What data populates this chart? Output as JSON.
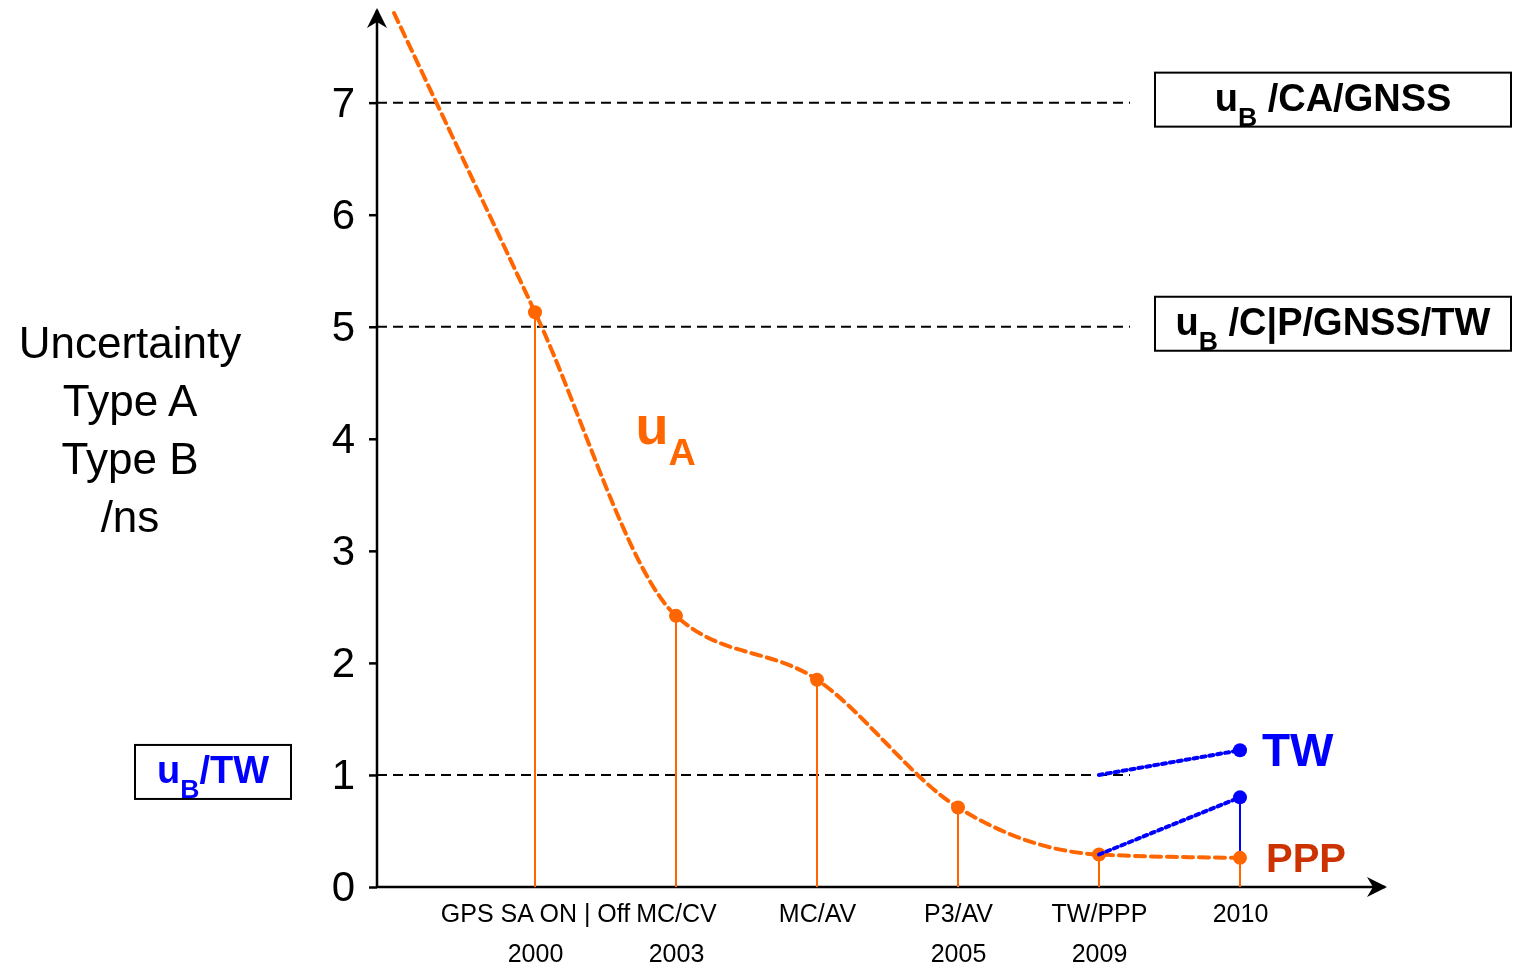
{
  "chart_data": {
    "type": "line",
    "ylabel": "Uncertainty\nType A\nType B\n/ns",
    "categories": [
      null,
      "GPS SA ON | Off\n2000",
      "MC/CV\n2003",
      "MC/AV",
      "P3/AV\n2005",
      "TW/PPP\n2009",
      "2010"
    ],
    "ylim": [
      0,
      7.8
    ],
    "yticks": [
      0,
      1,
      2,
      3,
      4,
      5,
      6,
      7
    ],
    "grid": false,
    "series": [
      {
        "name": "u$_{A}$",
        "color": "#ff6600",
        "line_style": "dashed",
        "marker": "none",
        "values": [
          7.8,
          5.13,
          2.42,
          1.85,
          0.71,
          0.29,
          0.26
        ]
      },
      {
        "type": "lollipop",
        "color": "#0000ff",
        "values": [
          null,
          null,
          null,
          null,
          null,
          null,
          0.8
        ]
      },
      {
        "type": "lollipop",
        "color": "#ff6600",
        "values": [
          null,
          5.13,
          2.42,
          1.85,
          0.71,
          0.29,
          0.26
        ]
      },
      {
        "name": "TW",
        "type": "line",
        "color": "#0000ff",
        "line_style": "dotted",
        "marker": "none",
        "values": [
          null,
          null,
          null,
          null,
          null,
          1.0,
          1.22
        ]
      },
      {
        "type": "line",
        "color": "#0000ff",
        "line_style": "dotted",
        "marker": "none",
        "values": [
          null,
          null,
          null,
          null,
          null,
          0.29,
          0.8
        ]
      },
      {
        "type": "scatter",
        "color": "#0000ff",
        "values": [
          null,
          null,
          null,
          null,
          null,
          null,
          1.22
        ]
      }
    ],
    "ref_lines": [
      {
        "axis": "y",
        "value": 7,
        "label": "u$_{B}$ /CA/GNSS"
      },
      {
        "axis": "y",
        "value": 5,
        "label": "u$_{B}$ /C|P/GNSS/TW"
      },
      {
        "axis": "y",
        "value": 1,
        "label": "u$_{B}$/TW"
      }
    ],
    "annotations": [
      "PPP"
    ]
  }
}
